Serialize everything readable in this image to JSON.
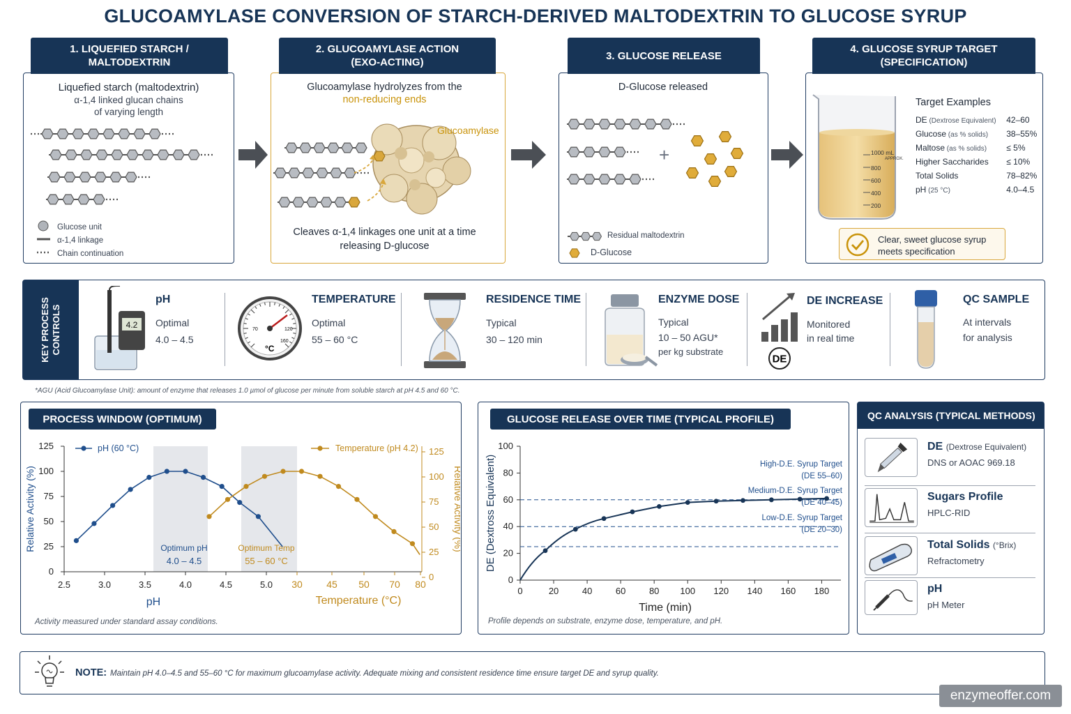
{
  "title": "GLUCOAMYLASE CONVERSION OF STARCH-DERIVED MALTODEXTRIN TO GLUCOSE SYRUP",
  "colors": {
    "navy": "#173456",
    "gold": "#c9930a",
    "blue_series": "#1f4e8c",
    "gold_series": "#c08a1e",
    "grey_panel": "#e5e7eb"
  },
  "steps": {
    "s1": {
      "head": [
        "1. LIQUEFIED STARCH /",
        "MALTODEXTRIN"
      ],
      "lines": [
        "Liquefied starch (maltodextrin)",
        "α-1,4 linked glucan chains",
        "of varying length"
      ],
      "legend": [
        "Glucose unit",
        "α-1,4 linkage",
        "Chain continuation"
      ]
    },
    "s2": {
      "head": [
        "2. GLUCOAMYLASE ACTION",
        "(EXO-ACTING)"
      ],
      "line1": "Glucoamylase hydrolyzes from the",
      "line2": "non-reducing ends",
      "enzyme_label": "Glucoamylase",
      "foot": [
        "Cleaves α-1,4 linkages one unit at a time",
        "releasing D-glucose"
      ]
    },
    "s3": {
      "head": "3. GLUCOSE RELEASE",
      "line1": "D-Glucose released",
      "plus": "+",
      "legend": [
        "Residual maltodextrin",
        "D-Glucose"
      ]
    },
    "s4": {
      "head": [
        "4. GLUCOSE SYRUP TARGET",
        "(SPECIFICATION)"
      ],
      "beaker_marks": [
        "1000 mL",
        "APPROX.",
        "800",
        "600",
        "400",
        "200"
      ],
      "spec_title": "Target Examples",
      "spec": [
        {
          "name": "DE",
          "sub": "(Dextrose Equivalent)",
          "val": "42–60"
        },
        {
          "name": "Glucose",
          "sub": "(as % solids)",
          "val": "38–55%"
        },
        {
          "name": "Maltose",
          "sub": "(as % solids)",
          "val": "≤ 5%"
        },
        {
          "name": "Higher Saccharides",
          "sub": "",
          "val": "≤ 10%"
        },
        {
          "name": "Total Solids",
          "sub": "",
          "val": "78–82%"
        },
        {
          "name": "pH",
          "sub": "(25 °C)",
          "val": "4.0–4.5"
        }
      ],
      "ok": [
        "Clear, sweet glucose syrup",
        "meets specification"
      ]
    }
  },
  "controls": {
    "label": [
      "KEY PROCESS",
      "CONTROLS"
    ],
    "items": [
      {
        "name": "pH",
        "l1": "Optimal",
        "l2": "4.0 – 4.5",
        "l3": "",
        "icon": "ph-meter-icon",
        "readout": "4.2"
      },
      {
        "name": "TEMPERATURE",
        "l1": "Optimal",
        "l2": "55 – 60 °C",
        "l3": "",
        "icon": "thermometer-gauge-icon"
      },
      {
        "name": "RESIDENCE TIME",
        "l1": "Typical",
        "l2": "30 – 120 min",
        "l3": "",
        "icon": "hourglass-icon"
      },
      {
        "name": "ENZYME DOSE",
        "l1": "Typical",
        "l2": "10 – 50 AGU*",
        "l3": "per kg substrate",
        "icon": "enzyme-bottle-icon"
      },
      {
        "name": "DE INCREASE",
        "l1": "Monitored",
        "l2": "in real time",
        "l3": "",
        "icon": "bar-trend-icon",
        "badge": "DE"
      },
      {
        "name": "QC SAMPLE",
        "l1": "At intervals",
        "l2": "for analysis",
        "l3": "",
        "icon": "test-tube-icon"
      }
    ],
    "gauge_marks": [
      "70",
      "120",
      "160",
      "°C"
    ],
    "footnote": "*AGU (Acid Glucoamylase Unit): amount of enzyme that releases 1.0 µmol of glucose per minute from soluble starch at pH 4.5 and 60 °C."
  },
  "process_window": {
    "head": "PROCESS WINDOW (OPTIMUM)",
    "caption": "Activity measured under standard assay conditions.",
    "ph_band_label": [
      "Optimum pH",
      "4.0 – 4.5"
    ],
    "temp_band_label": [
      "Optimum Temp",
      "55 – 60 °C"
    ]
  },
  "glucose_release": {
    "head": "GLUCOSE RELEASE OVER TIME (TYPICAL PROFILE)",
    "caption": "Profile depends on substrate, enzyme dose, temperature, and pH.",
    "targets": [
      {
        "label": [
          "High-D.E. Syrup Target",
          "(DE 55–60)"
        ],
        "y": 60
      },
      {
        "label": [
          "Medium-D.E. Syrup Target",
          "(DE 40–45)"
        ],
        "y": 40
      },
      {
        "label": [
          "Low-D.E. Syrup Target",
          "(DE 20–30)"
        ],
        "y": 25
      }
    ]
  },
  "qc": {
    "head": "QC ANALYSIS (TYPICAL METHODS)",
    "items": [
      {
        "name": "DE",
        "sub": "(Dextrose Equivalent)",
        "desc": "DNS or AOAC 969.18",
        "icon": "dropper-icon"
      },
      {
        "name": "Sugars Profile",
        "sub": "",
        "desc": "HPLC-RID",
        "icon": "chromatogram-icon"
      },
      {
        "name": "Total Solids",
        "sub": "(°Brix)",
        "desc": "Refractometry",
        "icon": "refractometer-icon"
      },
      {
        "name": "pH",
        "sub": "",
        "desc": "pH Meter",
        "icon": "ph-probe-icon"
      }
    ]
  },
  "note": {
    "label": "NOTE:",
    "text": "Maintain pH 4.0–4.5 and 55–60 °C for maximum glucoamylase activity. Adequate mixing and consistent residence time ensure target DE and syrup quality."
  },
  "watermark": "enzymeoffer.com",
  "chart_data": [
    {
      "type": "line",
      "title": "",
      "panels": [
        {
          "xlabel": "pH",
          "x_ticks": [
            "2.5",
            "3.0",
            "3.5",
            "4.0",
            "4.5",
            "5.0"
          ],
          "xlim": [
            2.5,
            5.25
          ],
          "ylabel": "Relative Activity (%)",
          "y_ticks": [
            "0",
            "25",
            "50",
            "75",
            "100",
            "125"
          ],
          "ylim": [
            0,
            125
          ],
          "series": [
            {
              "name": "pH (60 °C)",
              "x": [
                2.65,
                2.87,
                3.1,
                3.32,
                3.55,
                3.77,
                4.0,
                4.22,
                4.45,
                4.67,
                4.9
              ],
              "y": [
                31,
                48,
                66,
                82,
                94,
                100,
                100,
                94,
                85,
                69,
                55
              ],
              "tail_to": [
                5.2,
                25
              ]
            }
          ],
          "optimum_band": [
            4.0,
            4.5
          ]
        },
        {
          "xlabel": "Temperature (°C)",
          "x_ticks": [
            "30",
            "45",
            "50",
            "70",
            "80"
          ],
          "ylabel": "Relative Activity (%)",
          "y_ticks": [
            "0",
            "25",
            "50",
            "75",
            "100",
            "125"
          ],
          "ylim": [
            0,
            125
          ],
          "series": [
            {
              "name": "Temperature (pH 4.2)",
              "x": [
                25,
                30,
                35,
                40,
                45,
                50,
                55,
                60,
                65,
                70,
                75,
                80
              ],
              "y": [
                55,
                72,
                85,
                95,
                100,
                100,
                95,
                85,
                72,
                55,
                40,
                28
              ],
              "tail_to": [
                82,
                17
              ]
            }
          ],
          "optimum_band": [
            55,
            60
          ]
        }
      ]
    },
    {
      "type": "line",
      "title": "",
      "xlabel": "Time (min)",
      "ylabel": "DE (Dextross Equivalent)",
      "x_ticks": [
        "0",
        "20",
        "40",
        "60",
        "80",
        "100",
        "120",
        "140",
        "160",
        "180"
      ],
      "xlim": [
        0,
        200
      ],
      "y_ticks": [
        "0",
        "20",
        "40",
        "60",
        "80",
        "100"
      ],
      "ylim": [
        0,
        100
      ],
      "series": [
        {
          "name": "DE",
          "x": [
            0,
            15,
            33,
            50,
            67,
            83,
            100,
            117,
            133,
            150,
            167,
            183
          ],
          "y": [
            0,
            22,
            38,
            46,
            51,
            55,
            58,
            59,
            59.5,
            60,
            60.5,
            61
          ]
        }
      ]
    }
  ]
}
